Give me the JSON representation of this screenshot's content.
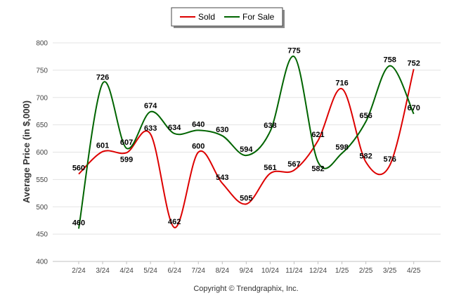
{
  "chart_data": {
    "type": "line",
    "ylabel": "Average Price (in $,000)",
    "xlabel": "",
    "ylim": [
      400,
      800
    ],
    "yticks": [
      400,
      450,
      500,
      550,
      600,
      650,
      700,
      750,
      800
    ],
    "grid": true,
    "legend_position": "top-center",
    "categories": [
      "2/24",
      "3/24",
      "4/24",
      "5/24",
      "6/24",
      "7/24",
      "8/24",
      "9/24",
      "10/24",
      "11/24",
      "12/24",
      "1/25",
      "2/25",
      "3/25",
      "4/25"
    ],
    "series": [
      {
        "name": "Sold",
        "color": "#dd0000",
        "values": [
          560,
          601,
          599,
          633,
          462,
          600,
          543,
          505,
          561,
          567,
          621,
          716,
          582,
          576,
          752
        ]
      },
      {
        "name": "For Sale",
        "color": "#006400",
        "values": [
          460,
          726,
          607,
          674,
          634,
          640,
          630,
          594,
          638,
          775,
          582,
          598,
          656,
          758,
          670
        ]
      }
    ],
    "credit": "Copyright © Trendgraphix, Inc."
  }
}
